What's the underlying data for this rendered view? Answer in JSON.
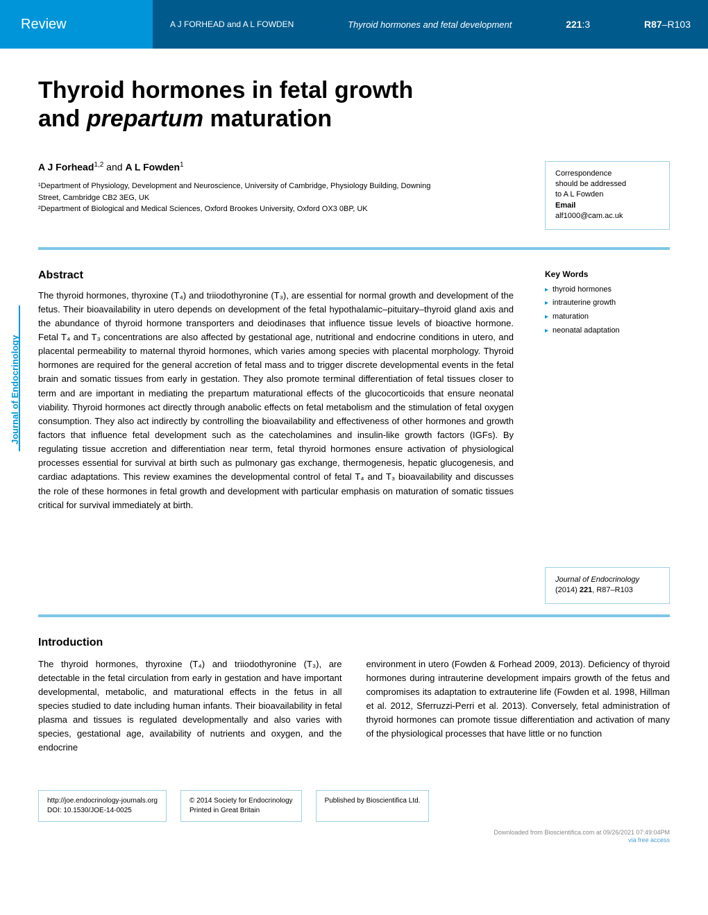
{
  "header": {
    "review_label": "Review",
    "authors_small": "A J FORHEAD and A L FOWDEN",
    "running_title": "Thyroid hormones and fetal development",
    "issue_vol": "221",
    "issue_num": ":3",
    "pages_bold": "R87",
    "pages_rest": "–R103"
  },
  "title_line1": "Thyroid hormones in fetal growth",
  "title_line2_a": "and ",
  "title_line2_italic": "prepartum",
  "title_line2_b": " maturation",
  "authors": {
    "name1": "A J Forhead",
    "sup1": "1,2",
    "connector": " and ",
    "name2": "A L Fowden",
    "sup2": "1"
  },
  "affiliations": {
    "aff1": "¹Department of Physiology, Development and Neuroscience, University of Cambridge, Physiology Building, Downing Street, Cambridge CB2 3EG, UK",
    "aff2": "²Department of Biological and Medical Sciences, Oxford Brookes University, Oxford OX3 0BP, UK"
  },
  "correspondence": {
    "line1": "Correspondence",
    "line2": "should be addressed",
    "line3": "to A L Fowden",
    "email_label": "Email",
    "email": "alf1000@cam.ac.uk"
  },
  "abstract": {
    "heading": "Abstract",
    "text": "The thyroid hormones, thyroxine (T₄) and triiodothyronine (T₃), are essential for normal growth and development of the fetus. Their bioavailability in utero depends on development of the fetal hypothalamic–pituitary–thyroid gland axis and the abundance of thyroid hormone transporters and deiodinases that influence tissue levels of bioactive hormone. Fetal T₄ and T₃ concentrations are also affected by gestational age, nutritional and endocrine conditions in utero, and placental permeability to maternal thyroid hormones, which varies among species with placental morphology. Thyroid hormones are required for the general accretion of fetal mass and to trigger discrete developmental events in the fetal brain and somatic tissues from early in gestation. They also promote terminal differentiation of fetal tissues closer to term and are important in mediating the prepartum maturational effects of the glucocorticoids that ensure neonatal viability. Thyroid hormones act directly through anabolic effects on fetal metabolism and the stimulation of fetal oxygen consumption. They also act indirectly by controlling the bioavailability and effectiveness of other hormones and growth factors that influence fetal development such as the catecholamines and insulin-like growth factors (IGFs). By regulating tissue accretion and differentiation near term, fetal thyroid hormones ensure activation of physiological processes essential for survival at birth such as pulmonary gas exchange, thermogenesis, hepatic glucogenesis, and cardiac adaptations. This review examines the developmental control of fetal T₄ and T₃ bioavailability and discusses the role of these hormones in fetal growth and development with particular emphasis on maturation of somatic tissues critical for survival immediately at birth."
  },
  "keywords": {
    "heading": "Key Words",
    "items": [
      "thyroid hormones",
      "intrauterine growth",
      "maturation",
      "neonatal adaptation"
    ]
  },
  "citation": {
    "journal": "Journal of Endocrinology",
    "year_vol": "(2014) ",
    "vol_bold": "221",
    "pages": ", R87–R103"
  },
  "spine": "Journal of Endocrinology",
  "intro": {
    "heading": "Introduction",
    "col1": "The thyroid hormones, thyroxine (T₄) and triiodothyronine (T₃), are detectable in the fetal circulation from early in gestation and have important developmental, metabolic, and maturational effects in the fetus in all species studied to date including human infants. Their bioavailability in fetal plasma and tissues is regulated developmentally and also varies with species, gestational age, availability of nutrients and oxygen, and the endocrine",
    "col2": "environment in utero (Fowden & Forhead 2009, 2013). Deficiency of thyroid hormones during intrauterine development impairs growth of the fetus and compromises its adaptation to extrauterine life (Fowden et al. 1998, Hillman et al. 2012, Sferruzzi-Perri et al. 2013). Conversely, fetal administration of thyroid hormones can promote tissue differentiation and activation of many of the physiological processes that have little or no function"
  },
  "footer": {
    "box1_line1": "http://joe.endocrinology-journals.org",
    "box1_line2": "DOI: 10.1530/JOE-14-0025",
    "box2_line1": "© 2014 Society for Endocrinology",
    "box2_line2": "Printed in Great Britain",
    "box3": "Published by Bioscientifica Ltd.",
    "bottom_line1": "Downloaded from Bioscientifica.com at 09/26/2021 07:49:04PM",
    "bottom_line2": "via free access"
  },
  "colors": {
    "blue_light": "#0095d9",
    "blue_dark": "#005a8c",
    "rule_blue": "#7fc6e8",
    "box_border": "#9fcfe6"
  }
}
